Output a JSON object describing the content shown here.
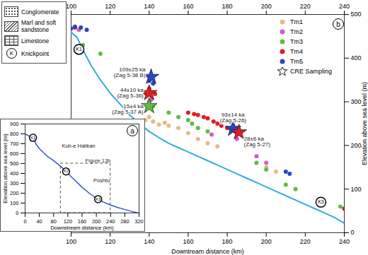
{
  "chart_data": [
    {
      "type": "scatter",
      "panel": "b",
      "x_label": "Downtream distance (km)",
      "y_label": "Elevation above sea level (m)",
      "xlim": [
        100,
        240
      ],
      "xticks": [
        100,
        120,
        140,
        160,
        180,
        200,
        220,
        240
      ],
      "ylim": [
        0,
        500
      ],
      "yticks": [
        0,
        100,
        200,
        300,
        400,
        500
      ],
      "grid": false,
      "legend": "top-right",
      "profile": {
        "color": "#33aadd",
        "line_style": "solid",
        "x": [
          100,
          103,
          106,
          110,
          115,
          120,
          125,
          130,
          135,
          140,
          145,
          150,
          155,
          160,
          165,
          170,
          175,
          180,
          185,
          190,
          195,
          200,
          205,
          210,
          215,
          220,
          225,
          230,
          235,
          240
        ],
        "values": [
          459,
          448,
          420,
          385,
          350,
          320,
          295,
          270,
          250,
          232,
          218,
          205,
          195,
          185,
          175,
          165,
          155,
          145,
          135,
          125,
          115,
          105,
          95,
          85,
          75,
          65,
          55,
          45,
          35,
          22
        ]
      },
      "series": [
        {
          "name": "Tm1",
          "color": "#e8b98a",
          "marker": "circle",
          "x": [
            138,
            140,
            142,
            145,
            148,
            150,
            155,
            160,
            165,
            170,
            175,
            200,
            205
          ],
          "values": [
            258,
            265,
            255,
            248,
            252,
            245,
            240,
            228,
            215,
            205,
            198,
            150,
            140
          ]
        },
        {
          "name": "Tm2",
          "color": "#d957c9",
          "marker": "circle",
          "x": [
            104,
            140,
            141,
            172,
            185,
            195,
            200
          ],
          "values": [
            465,
            300,
            305,
            225,
            215,
            175,
            160
          ]
        },
        {
          "name": "Tm3",
          "color": "#5cbf3f",
          "marker": "circle",
          "x": [
            106,
            115,
            142,
            150,
            155,
            160,
            162,
            165,
            170,
            195,
            200,
            210,
            215,
            238
          ],
          "values": [
            430,
            410,
            290,
            275,
            265,
            258,
            250,
            240,
            232,
            160,
            145,
            110,
            100,
            60
          ]
        },
        {
          "name": "Tm4",
          "color": "#e31b23",
          "marker": "circle",
          "x": [
            102,
            138,
            140,
            143,
            160,
            163,
            165,
            168,
            170,
            173,
            175,
            177,
            180,
            182,
            184,
            240
          ],
          "values": [
            470,
            320,
            330,
            318,
            275,
            272,
            270,
            265,
            262,
            255,
            250,
            245,
            240,
            236,
            232,
            55
          ]
        },
        {
          "name": "Tm5",
          "color": "#2946c8",
          "marker": "circle",
          "x": [
            100,
            102,
            105,
            108,
            140,
            142,
            183,
            186,
            210,
            212
          ],
          "values": [
            468,
            472,
            470,
            465,
            348,
            342,
            245,
            235,
            140,
            135
          ]
        }
      ],
      "cre_sampling": {
        "name": "CRE Sampling",
        "marker": "star",
        "points": [
          {
            "x": 141,
            "y": 357,
            "label": "109±25 ka",
            "sample": "(Zag 5-38 B)",
            "color": "#2946c8"
          },
          {
            "x": 140,
            "y": 320,
            "label": "44±10 ka",
            "sample": "(Zag 5-36)",
            "color": "#e31b23"
          },
          {
            "x": 140,
            "y": 290,
            "label": "15±4 ka",
            "sample": "(Zag 5-37 A)",
            "color": "#5cbf3f"
          },
          {
            "x": 183,
            "y": 238,
            "label": "93±14 ka",
            "sample": "(Zag 5-26)",
            "color": "#2946c8"
          },
          {
            "x": 186,
            "y": 230,
            "label": "28±6 ka",
            "sample": "(Zag 5-27)",
            "color": "#e31b23"
          }
        ]
      },
      "knickpoints": [
        {
          "x": 104,
          "y": 420,
          "label": "K1"
        },
        {
          "x": 228,
          "y": 70,
          "label": "K3"
        }
      ]
    },
    {
      "type": "line",
      "panel": "a",
      "x_label": "Downstream distance (km)",
      "y_label": "Elevation above sea level (m)",
      "xlim": [
        0,
        320
      ],
      "xticks": [
        0,
        40,
        80,
        120,
        160,
        200,
        240,
        280,
        320
      ],
      "ylim": [
        0,
        900
      ],
      "yticks": [
        0,
        100,
        200,
        300,
        400,
        500,
        600,
        700,
        800,
        900
      ],
      "grid": false,
      "profile": {
        "color": "#3355cc",
        "line_style": "solid",
        "x": [
          0,
          10,
          20,
          25,
          30,
          40,
          60,
          80,
          100,
          110,
          120,
          140,
          160,
          180,
          200,
          220,
          240,
          260,
          280,
          300,
          320
        ],
        "values": [
          800,
          780,
          760,
          740,
          700,
          650,
          580,
          530,
          470,
          440,
          400,
          330,
          260,
          200,
          150,
          110,
          80,
          55,
          35,
          15,
          0
        ]
      },
      "knickpoints": [
        {
          "x": 22,
          "y": 760,
          "label": "K1"
        },
        {
          "x": 115,
          "y": 420,
          "label": "K2"
        },
        {
          "x": 205,
          "y": 140,
          "label": "K3"
        }
      ],
      "figure_box": {
        "label": "Figure 13b",
        "x": [
          100,
          240
        ],
        "y": [
          0,
          500
        ],
        "line_style": "dashed"
      },
      "labels": [
        {
          "text": "Kuh-e Halikan",
          "x": 150,
          "y": 680
        },
        {
          "text": "Poshtu",
          "x": 215,
          "y": 330
        }
      ],
      "geology_legend": [
        {
          "label": "Conglomerate"
        },
        {
          "label": "Marl and soft sandstone"
        },
        {
          "label": "Limestone"
        }
      ],
      "knickpoint_legend": {
        "symbol": "K",
        "label": "Knickpoint"
      }
    }
  ]
}
